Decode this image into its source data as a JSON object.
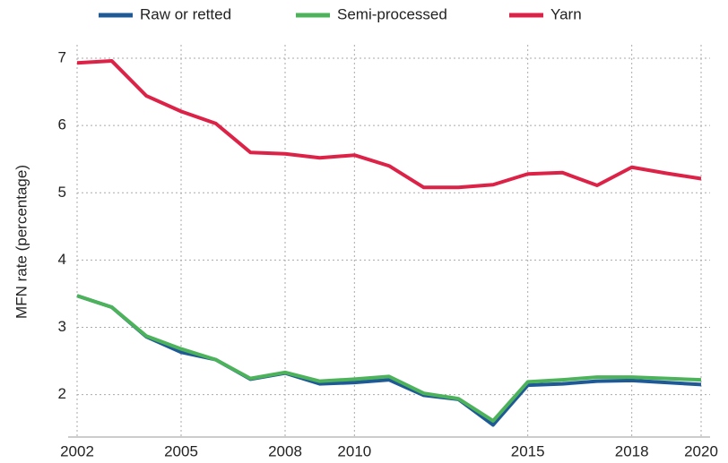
{
  "chart_data": {
    "type": "line",
    "y_label": "MFN rate (percentage)",
    "x": [
      2002,
      2003,
      2004,
      2005,
      2006,
      2007,
      2008,
      2009,
      2010,
      2011,
      2012,
      2013,
      2014,
      2015,
      2016,
      2017,
      2018,
      2019,
      2020
    ],
    "series": [
      {
        "name": "Raw or retted",
        "color": "#1f5a96",
        "values": [
          3.47,
          3.3,
          2.86,
          2.63,
          2.52,
          2.23,
          2.32,
          2.16,
          2.18,
          2.22,
          1.99,
          1.93,
          1.55,
          2.14,
          2.16,
          2.2,
          2.21,
          2.18,
          2.15
        ]
      },
      {
        "name": "Semi-processed",
        "color": "#4db35a",
        "values": [
          3.47,
          3.3,
          2.87,
          2.68,
          2.52,
          2.24,
          2.33,
          2.2,
          2.23,
          2.27,
          2.02,
          1.94,
          1.61,
          2.19,
          2.22,
          2.26,
          2.26,
          2.24,
          2.22
        ]
      },
      {
        "name": "Yarn",
        "color": "#dc2247",
        "values": [
          6.93,
          6.96,
          6.44,
          6.21,
          6.03,
          5.6,
          5.58,
          5.52,
          5.56,
          5.4,
          5.08,
          5.08,
          5.12,
          5.28,
          5.3,
          5.11,
          5.38,
          5.29,
          5.21
        ]
      }
    ],
    "xlim": [
      2002,
      2020
    ],
    "xticks": [
      2002,
      2005,
      2008,
      2010,
      2015,
      2018,
      2020
    ],
    "ylim": [
      1.37,
      7.2
    ],
    "yticks": [
      2,
      3,
      4,
      5,
      6,
      7
    ],
    "grid": true
  }
}
